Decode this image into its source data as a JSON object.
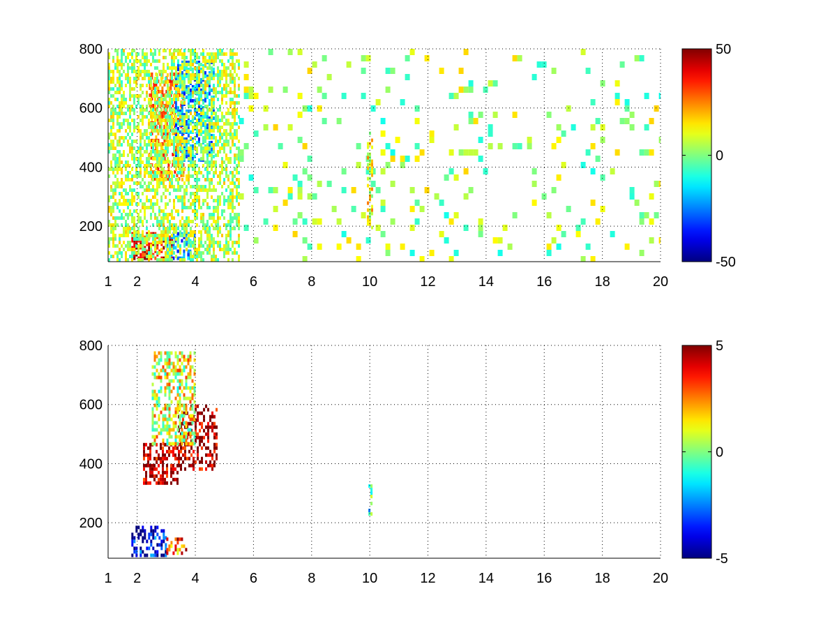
{
  "chart_data": [
    {
      "type": "heatmap",
      "title": "",
      "xlabel": "",
      "ylabel": "",
      "xlim": [
        1,
        20
      ],
      "ylim": [
        80,
        800
      ],
      "x_ticks": [
        1,
        2,
        4,
        6,
        8,
        10,
        12,
        14,
        16,
        18,
        20
      ],
      "y_ticks": [
        200,
        400,
        600,
        800
      ],
      "x_tick_labels": [
        "1",
        "2",
        "4",
        "6",
        "8",
        "10",
        "12",
        "14",
        "16",
        "18",
        "20"
      ],
      "y_tick_labels": [
        "200",
        "400",
        "600",
        "800"
      ],
      "grid": true,
      "colormap": "jet",
      "colorbar": {
        "min": -50,
        "max": 50,
        "labels": [
          "50",
          "0",
          "-50"
        ]
      },
      "features": [
        {
          "x_range": [
            2.4,
            3.6
          ],
          "y_range": [
            360,
            720
          ],
          "value": 25
        },
        {
          "x_range": [
            3.3,
            4.6
          ],
          "y_range": [
            420,
            760
          ],
          "value": -22
        },
        {
          "x_range": [
            1.8,
            3.2
          ],
          "y_range": [
            90,
            180
          ],
          "value": 40
        },
        {
          "x_range": [
            3.0,
            4.0
          ],
          "y_range": [
            90,
            180
          ],
          "value": -25
        },
        {
          "x_range": [
            1.0,
            5.5
          ],
          "y_range": [
            80,
            800
          ],
          "value": 5
        },
        {
          "x_range": [
            5.5,
            20.0
          ],
          "y_range": [
            80,
            800
          ],
          "value": 3
        },
        {
          "x_range": [
            9.9,
            10.1
          ],
          "y_range": [
            200,
            520
          ],
          "value": 12
        }
      ]
    },
    {
      "type": "heatmap",
      "title": "",
      "xlabel": "",
      "ylabel": "",
      "xlim": [
        1,
        20
      ],
      "ylim": [
        80,
        800
      ],
      "x_ticks": [
        1,
        2,
        4,
        6,
        8,
        10,
        12,
        14,
        16,
        18,
        20
      ],
      "y_ticks": [
        200,
        400,
        600,
        800
      ],
      "x_tick_labels": [
        "1",
        "2",
        "4",
        "6",
        "8",
        "10",
        "12",
        "14",
        "16",
        "18",
        "20"
      ],
      "y_tick_labels": [
        "200",
        "400",
        "600",
        "800"
      ],
      "grid": true,
      "colormap": "jet",
      "colorbar": {
        "min": -5,
        "max": 5,
        "labels": [
          "5",
          "0",
          "-5"
        ]
      },
      "features": [
        {
          "x_range": [
            2.2,
            3.4
          ],
          "y_range": [
            330,
            470
          ],
          "value": 5
        },
        {
          "x_range": [
            3.4,
            4.7
          ],
          "y_range": [
            380,
            600
          ],
          "value": 5
        },
        {
          "x_range": [
            2.5,
            4.0
          ],
          "y_range": [
            470,
            780
          ],
          "value": 1
        },
        {
          "x_range": [
            1.8,
            3.0
          ],
          "y_range": [
            90,
            190
          ],
          "value": -4
        },
        {
          "x_range": [
            3.0,
            3.7
          ],
          "y_range": [
            100,
            150
          ],
          "value": 3
        },
        {
          "x_range": [
            9.95,
            10.05
          ],
          "y_range": [
            210,
            330
          ],
          "value": -1
        }
      ]
    }
  ]
}
